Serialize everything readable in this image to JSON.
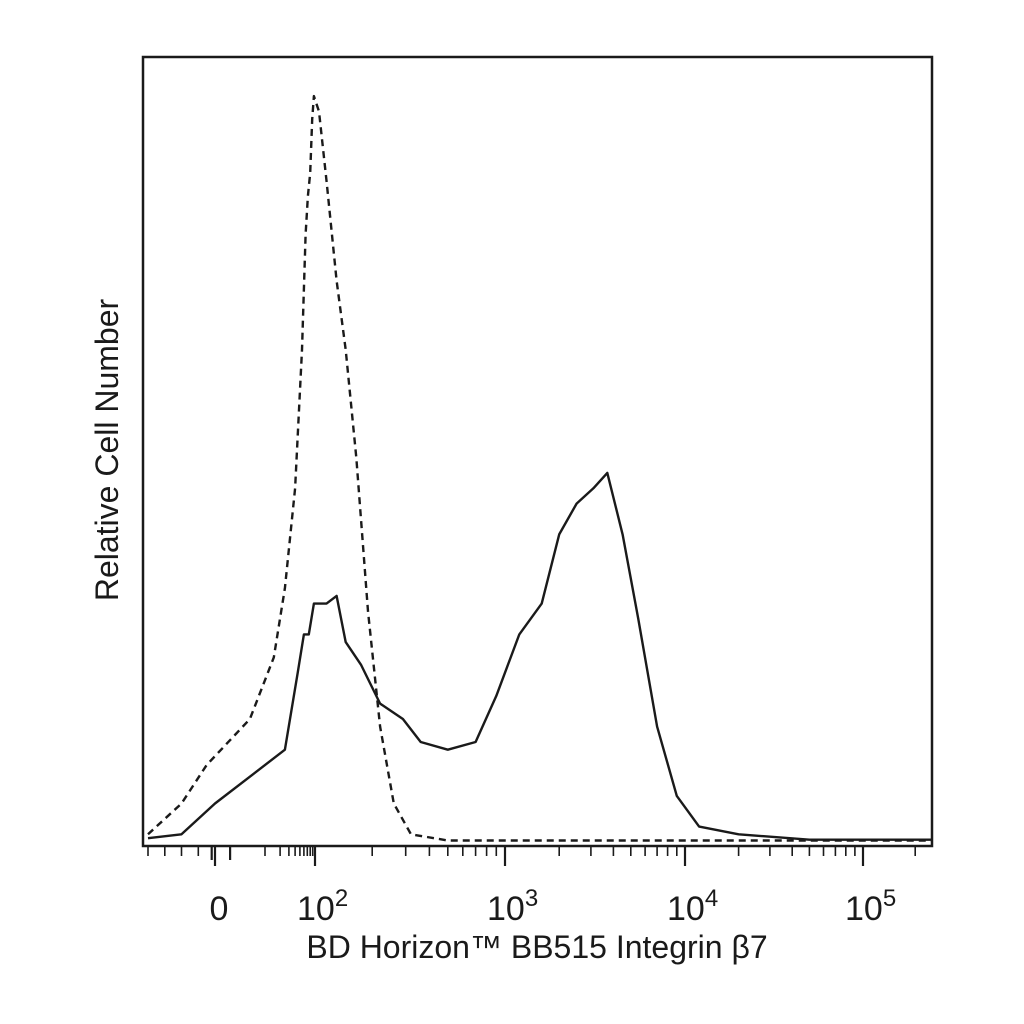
{
  "chart_data": {
    "type": "line",
    "xlabel": "BD Horizon™ BB515 Integrin β7",
    "ylabel": "Relative Cell Number",
    "x_scale": "biexponential",
    "xlim": [
      -40,
      250000
    ],
    "ylim": [
      0,
      1
    ],
    "grid": false,
    "legend": "none",
    "x_tick_labels": [
      {
        "value": 0,
        "base": "0",
        "exp": ""
      },
      {
        "value": 100,
        "base": "10",
        "exp": "2"
      },
      {
        "value": 1000,
        "base": "10",
        "exp": "3"
      },
      {
        "value": 10000,
        "base": "10",
        "exp": "4"
      },
      {
        "value": 100000,
        "base": "10",
        "exp": "5"
      }
    ],
    "series": [
      {
        "style": "dashed",
        "points": [
          [
            -40,
            0.01
          ],
          [
            -20,
            0.05
          ],
          [
            -5,
            0.1
          ],
          [
            5,
            0.16
          ],
          [
            15,
            0.24
          ],
          [
            25,
            0.33
          ],
          [
            40,
            0.46
          ],
          [
            55,
            0.64
          ],
          [
            65,
            0.79
          ],
          [
            72,
            0.84
          ],
          [
            80,
            0.87
          ],
          [
            88,
            0.94
          ],
          [
            95,
            0.97
          ],
          [
            105,
            0.95
          ],
          [
            115,
            0.86
          ],
          [
            130,
            0.73
          ],
          [
            145,
            0.64
          ],
          [
            165,
            0.5
          ],
          [
            190,
            0.3
          ],
          [
            220,
            0.15
          ],
          [
            260,
            0.05
          ],
          [
            320,
            0.01
          ],
          [
            500,
            0.002
          ],
          [
            100000,
            0.002
          ],
          [
            250000,
            0.002
          ]
        ]
      },
      {
        "style": "solid",
        "points": [
          [
            -40,
            0.005
          ],
          [
            -20,
            0.01
          ],
          [
            0,
            0.05
          ],
          [
            25,
            0.12
          ],
          [
            45,
            0.22
          ],
          [
            60,
            0.27
          ],
          [
            75,
            0.27
          ],
          [
            95,
            0.31
          ],
          [
            115,
            0.31
          ],
          [
            130,
            0.32
          ],
          [
            145,
            0.26
          ],
          [
            175,
            0.23
          ],
          [
            220,
            0.18
          ],
          [
            290,
            0.16
          ],
          [
            360,
            0.13
          ],
          [
            500,
            0.12
          ],
          [
            700,
            0.13
          ],
          [
            900,
            0.19
          ],
          [
            1200,
            0.27
          ],
          [
            1600,
            0.31
          ],
          [
            2000,
            0.4
          ],
          [
            2500,
            0.44
          ],
          [
            3100,
            0.46
          ],
          [
            3700,
            0.48
          ],
          [
            4500,
            0.4
          ],
          [
            5500,
            0.29
          ],
          [
            7000,
            0.15
          ],
          [
            9000,
            0.06
          ],
          [
            12000,
            0.02
          ],
          [
            20000,
            0.01
          ],
          [
            50000,
            0.003
          ],
          [
            250000,
            0.003
          ]
        ]
      }
    ]
  }
}
